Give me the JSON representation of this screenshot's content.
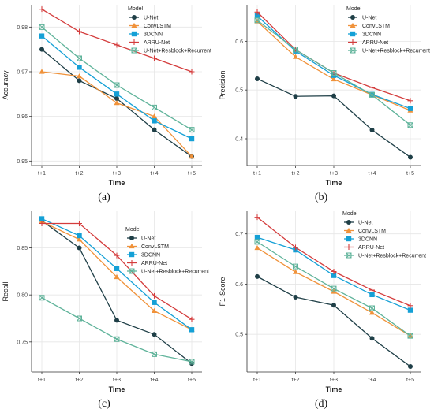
{
  "colors": {
    "U-Net": "#1f3f47",
    "ConvLSTM": "#f0923a",
    "3DCNN": "#14a0d6",
    "ARRU-Net": "#d43c3c",
    "U-Net+Resblock+Recurrent": "#5fb39a"
  },
  "chart_data": [
    {
      "panel_label": "(a)",
      "type": "line",
      "xlabel": "Time",
      "ylabel": "Accuracy",
      "legend_title": "Model",
      "legend_position": "top-right",
      "categories": [
        "t+1",
        "t+2",
        "t+3",
        "t+4",
        "t+5"
      ],
      "ylim": [
        0.949,
        0.985
      ],
      "yticks": [
        0.95,
        0.96,
        0.97,
        0.98
      ],
      "ytick_labels": [
        "0.95",
        "0.96",
        "0.97",
        "0.98"
      ],
      "grid": true,
      "series": [
        {
          "name": "U-Net",
          "marker": "circle",
          "values": [
            0.975,
            0.968,
            0.964,
            0.957,
            0.951
          ]
        },
        {
          "name": "ConvLSTM",
          "marker": "triangle",
          "values": [
            0.97,
            0.969,
            0.963,
            0.96,
            0.951
          ]
        },
        {
          "name": "3DCNN",
          "marker": "square",
          "values": [
            0.978,
            0.971,
            0.965,
            0.959,
            0.955
          ]
        },
        {
          "name": "ARRU-Net",
          "marker": "plus",
          "values": [
            0.984,
            0.979,
            0.976,
            0.973,
            0.97
          ]
        },
        {
          "name": "U-Net+Resblock+Recurrent",
          "marker": "boxx",
          "values": [
            0.98,
            0.973,
            0.967,
            0.962,
            0.957
          ]
        }
      ]
    },
    {
      "panel_label": "(b)",
      "type": "line",
      "xlabel": "Time",
      "ylabel": "Precision",
      "legend_title": "Model",
      "legend_position": "top-right",
      "categories": [
        "t+1",
        "t+2",
        "t+3",
        "t+4",
        "t+5"
      ],
      "ylim": [
        0.345,
        0.675
      ],
      "yticks": [
        0.4,
        0.5,
        0.6
      ],
      "ytick_labels": [
        "0.4",
        "0.5",
        "0.6"
      ],
      "grid": true,
      "series": [
        {
          "name": "U-Net",
          "marker": "circle",
          "values": [
            0.523,
            0.487,
            0.488,
            0.418,
            0.362
          ]
        },
        {
          "name": "ConvLSTM",
          "marker": "triangle",
          "values": [
            0.641,
            0.568,
            0.522,
            0.49,
            0.458
          ]
        },
        {
          "name": "3DCNN",
          "marker": "square",
          "values": [
            0.652,
            0.58,
            0.53,
            0.491,
            0.462
          ]
        },
        {
          "name": "ARRU-Net",
          "marker": "plus",
          "values": [
            0.66,
            0.583,
            0.535,
            0.505,
            0.478
          ]
        },
        {
          "name": "U-Net+Resblock+Recurrent",
          "marker": "boxx",
          "values": [
            0.643,
            0.583,
            0.535,
            0.49,
            0.428
          ]
        }
      ]
    },
    {
      "panel_label": "(c)",
      "type": "line",
      "xlabel": "Time",
      "ylabel": "Recall",
      "legend_title": "Model",
      "legend_position": "top-right",
      "categories": [
        "t+1",
        "t+2",
        "t+3",
        "t+4",
        "t+5"
      ],
      "ylim": [
        0.718,
        0.889
      ],
      "yticks": [
        0.75,
        0.8,
        0.85
      ],
      "ytick_labels": [
        "0.75",
        "0.80",
        "0.85"
      ],
      "grid": true,
      "series": [
        {
          "name": "U-Net",
          "marker": "circle",
          "values": [
            0.879,
            0.85,
            0.773,
            0.758,
            0.727
          ]
        },
        {
          "name": "ConvLSTM",
          "marker": "triangle",
          "values": [
            0.878,
            0.859,
            0.819,
            0.783,
            0.763
          ]
        },
        {
          "name": "3DCNN",
          "marker": "square",
          "values": [
            0.881,
            0.863,
            0.828,
            0.792,
            0.763
          ]
        },
        {
          "name": "ARRU-Net",
          "marker": "plus",
          "values": [
            0.876,
            0.876,
            0.842,
            0.799,
            0.774
          ]
        },
        {
          "name": "U-Net+Resblock+Recurrent",
          "marker": "boxx",
          "values": [
            0.797,
            0.775,
            0.753,
            0.737,
            0.729
          ]
        }
      ]
    },
    {
      "panel_label": "(d)",
      "type": "line",
      "xlabel": "Time",
      "ylabel": "F1-Score",
      "legend_title": "Model",
      "legend_position": "top-right",
      "categories": [
        "t+1",
        "t+2",
        "t+3",
        "t+4",
        "t+5"
      ],
      "ylim": [
        0.425,
        0.745
      ],
      "yticks": [
        0.5,
        0.6,
        0.7
      ],
      "ytick_labels": [
        "0.5",
        "0.6",
        "0.7"
      ],
      "grid": true,
      "series": [
        {
          "name": "U-Net",
          "marker": "circle",
          "values": [
            0.615,
            0.574,
            0.558,
            0.492,
            0.436
          ]
        },
        {
          "name": "ConvLSTM",
          "marker": "triangle",
          "values": [
            0.672,
            0.624,
            0.585,
            0.543,
            0.497
          ]
        },
        {
          "name": "3DCNN",
          "marker": "square",
          "values": [
            0.693,
            0.668,
            0.617,
            0.579,
            0.548
          ]
        },
        {
          "name": "ARRU-Net",
          "marker": "plus",
          "values": [
            0.733,
            0.673,
            0.625,
            0.588,
            0.557
          ]
        },
        {
          "name": "U-Net+Resblock+Recurrent",
          "marker": "boxx",
          "values": [
            0.684,
            0.635,
            0.591,
            0.552,
            0.497
          ]
        }
      ]
    }
  ]
}
